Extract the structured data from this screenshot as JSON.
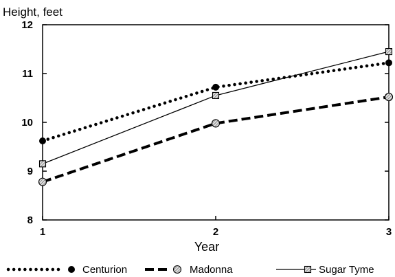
{
  "chart_data": {
    "type": "line",
    "title": "Height, feet",
    "xlabel": "Year",
    "ylabel": "",
    "x": [
      1,
      2,
      3
    ],
    "xlim": [
      1,
      3
    ],
    "ylim": [
      8,
      12
    ],
    "yticks": [
      8,
      9,
      10,
      11,
      12
    ],
    "xticks": [
      1,
      2,
      3
    ],
    "grid": false,
    "legend_position": "bottom",
    "series": [
      {
        "name": "Centurion",
        "values": [
          9.62,
          10.72,
          11.22
        ],
        "style": "dotted",
        "marker": "filled-circle",
        "color": "#000000"
      },
      {
        "name": "Madonna",
        "values": [
          8.78,
          9.98,
          10.52
        ],
        "style": "dashed",
        "marker": "hatched-circle",
        "color": "#000000"
      },
      {
        "name": "Sugar Tyme",
        "values": [
          9.15,
          10.55,
          11.45
        ],
        "style": "solid",
        "marker": "hatched-square",
        "color": "#000000"
      }
    ]
  }
}
